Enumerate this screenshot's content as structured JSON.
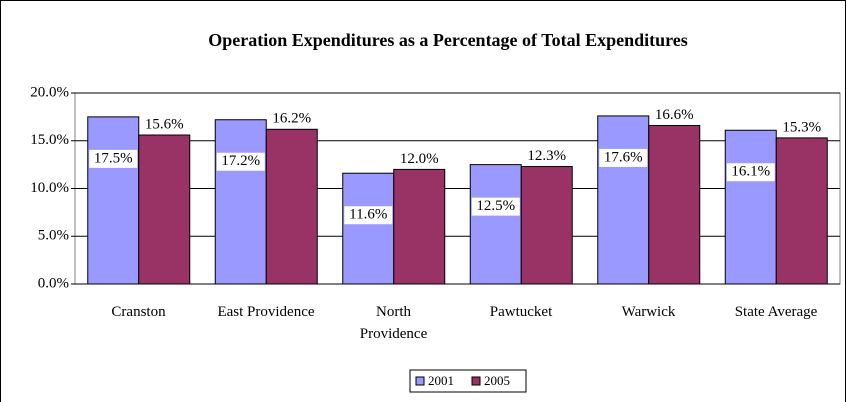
{
  "chart_data": {
    "type": "bar",
    "title": "Operation Expenditures as a Percentage of Total Expenditures",
    "categories": [
      "Cranston",
      "East Providence",
      "North\nProvidence",
      "Pawtucket",
      "Warwick",
      "State Average"
    ],
    "series": [
      {
        "name": "2001",
        "color": "#9999ff",
        "values": [
          17.5,
          17.2,
          11.6,
          12.5,
          17.6,
          16.1
        ],
        "value_labels": [
          "17.5%",
          "17.2%",
          "11.6%",
          "12.5%",
          "17.6%",
          "16.1%"
        ]
      },
      {
        "name": "2005",
        "color": "#993366",
        "values": [
          15.6,
          16.2,
          12.0,
          12.3,
          16.6,
          15.3
        ],
        "value_labels": [
          "15.6%",
          "16.2%",
          "12.0%",
          "12.3%",
          "16.6%",
          "15.3%"
        ]
      }
    ],
    "ylim": [
      0,
      20
    ],
    "yticks": [
      {
        "value": 0,
        "label": "0.0%"
      },
      {
        "value": 5,
        "label": "5.0%"
      },
      {
        "value": 10,
        "label": "10.0%"
      },
      {
        "value": 15,
        "label": "15.0%"
      },
      {
        "value": 20,
        "label": "20.0%"
      }
    ],
    "grid": true,
    "legend": "bottom"
  }
}
